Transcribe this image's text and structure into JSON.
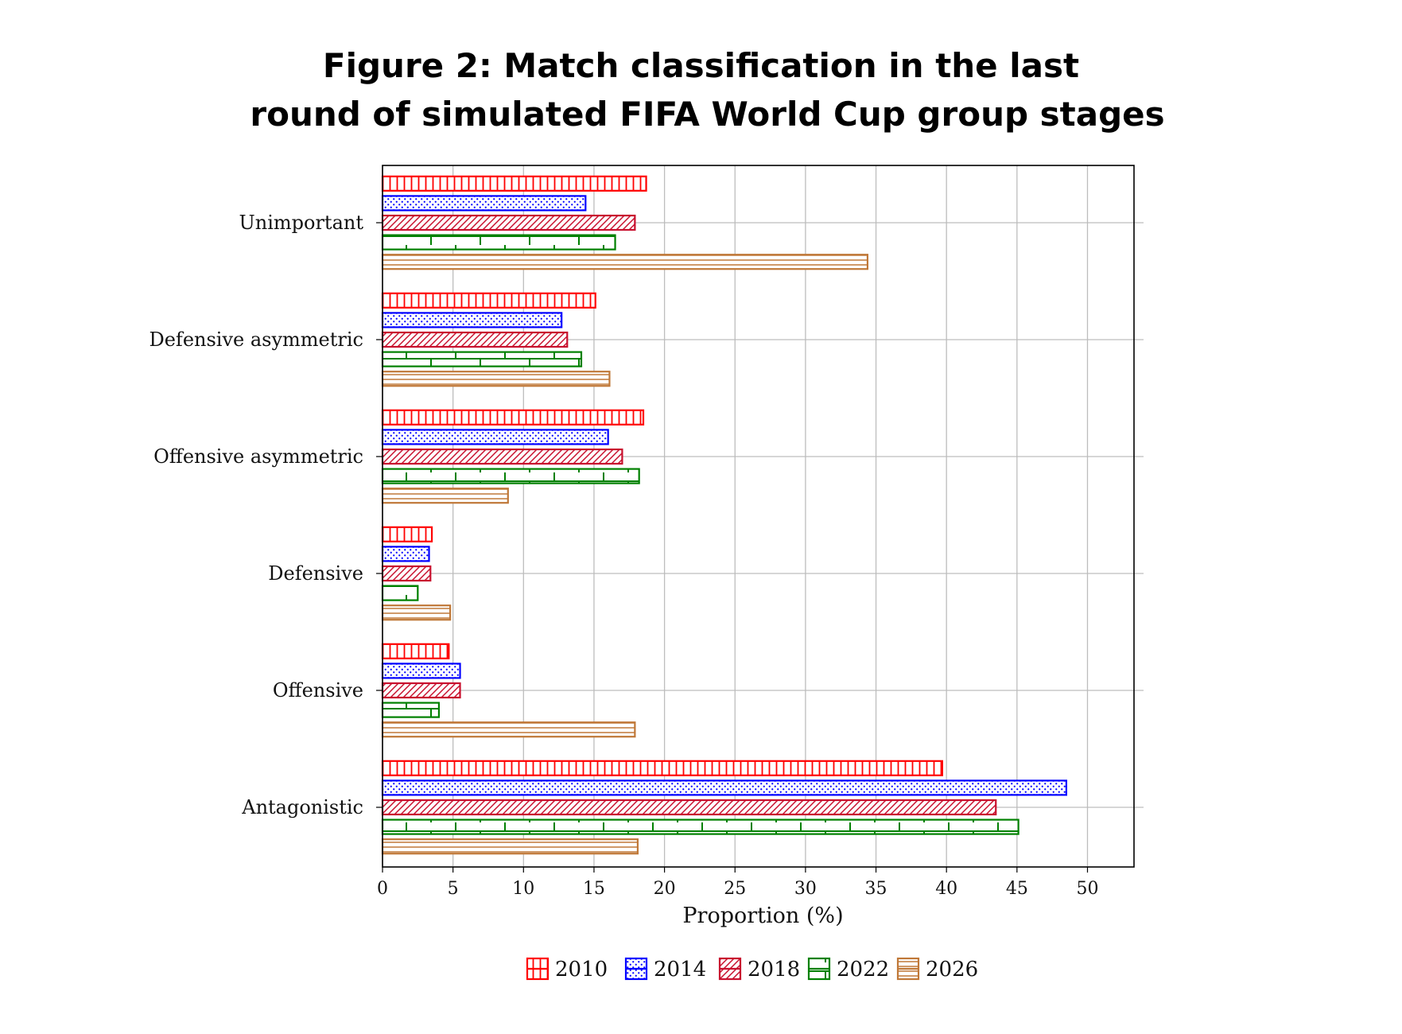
{
  "title": {
    "line1": "Figure 2: Match classification in the last",
    "line2": "round of simulated FIFA World Cup group stages"
  },
  "chart_data": {
    "type": "bar",
    "orientation": "horizontal",
    "categories": [
      "Unimportant",
      "Defensive asymmetric",
      "Offensive asymmetric",
      "Defensive",
      "Offensive",
      "Antagonistic"
    ],
    "series": [
      {
        "name": "2010",
        "color": "#ff0000",
        "pattern": "vertical-lines",
        "values": [
          18.7,
          15.1,
          18.5,
          3.5,
          4.7,
          39.7
        ]
      },
      {
        "name": "2014",
        "color": "#0000ff",
        "pattern": "dots",
        "values": [
          14.4,
          12.7,
          16.0,
          3.3,
          5.5,
          48.5
        ]
      },
      {
        "name": "2018",
        "color": "#c8102e",
        "pattern": "diagonal-lines",
        "values": [
          17.9,
          13.1,
          17.0,
          3.4,
          5.5,
          43.5
        ]
      },
      {
        "name": "2022",
        "color": "#008000",
        "pattern": "bricks",
        "values": [
          16.5,
          14.1,
          18.2,
          2.5,
          4.0,
          45.1
        ]
      },
      {
        "name": "2026",
        "color": "#c07838",
        "pattern": "horizontal-lines",
        "values": [
          34.4,
          16.1,
          8.9,
          4.8,
          17.9,
          18.1
        ]
      }
    ],
    "xlabel": "Proportion (%)",
    "ylabel": "",
    "xlim": [
      0,
      53.3
    ],
    "xticks": [
      0,
      5,
      10,
      15,
      20,
      25,
      30,
      35,
      40,
      45,
      50
    ],
    "grid": true,
    "legend_position": "bottom"
  }
}
